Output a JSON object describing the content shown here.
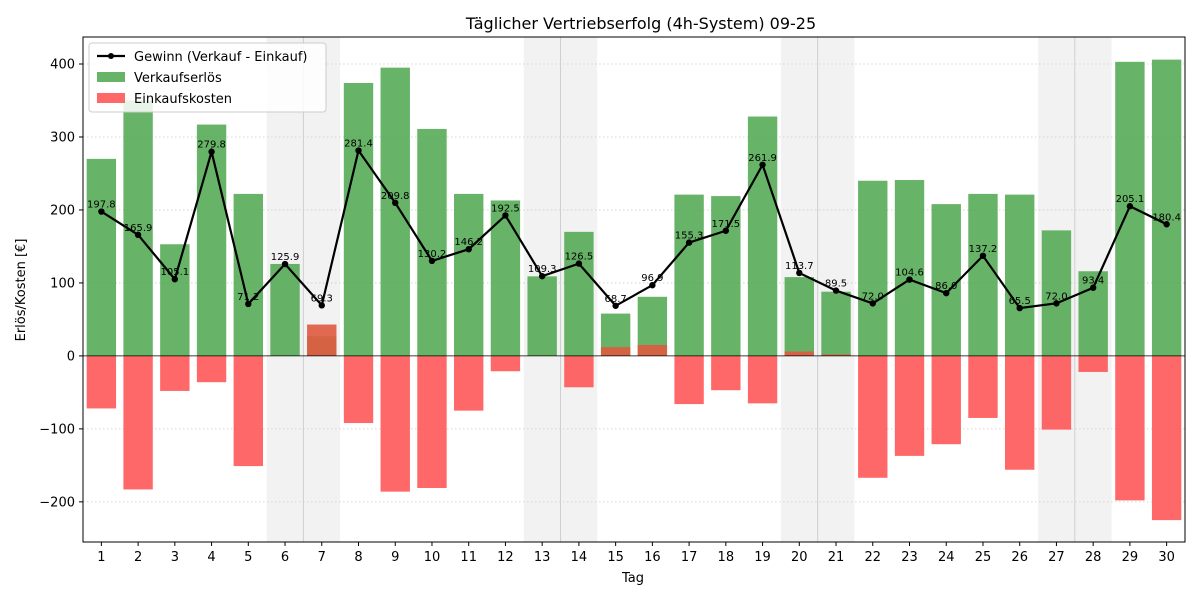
{
  "chart_data": {
    "type": "bar",
    "title": "Täglicher Vertriebserfolg (4h-System) 09-25",
    "xlabel": "Tag",
    "ylabel": "Erlös/Kosten [€]",
    "ylim": [
      -255,
      437
    ],
    "yticks": [
      -200,
      -100,
      0,
      100,
      200,
      300,
      400
    ],
    "grid": "horizontal-dotted",
    "legend_position": "top-left",
    "categories": [
      "1",
      "2",
      "3",
      "4",
      "5",
      "6",
      "7",
      "8",
      "9",
      "10",
      "11",
      "12",
      "13",
      "14",
      "15",
      "16",
      "17",
      "18",
      "19",
      "20",
      "21",
      "22",
      "23",
      "24",
      "25",
      "26",
      "27",
      "28",
      "29",
      "30"
    ],
    "weekend_days": [
      6,
      7,
      13,
      14,
      20,
      21,
      27,
      28
    ],
    "series": [
      {
        "name": "Gewinn (Verkauf - Einkauf)",
        "kind": "line",
        "color": "#000000",
        "values": [
          197.8,
          165.9,
          105.1,
          279.8,
          71.2,
          125.9,
          69.3,
          281.4,
          209.8,
          130.2,
          146.2,
          192.5,
          109.3,
          126.5,
          68.7,
          96.9,
          155.3,
          171.5,
          261.9,
          113.7,
          89.5,
          72.0,
          104.6,
          86.0,
          137.2,
          65.5,
          72.0,
          93.4,
          205.1,
          180.4
        ],
        "labels": [
          "197.8",
          "165.9",
          "105.1",
          "279.8",
          "71.2",
          "125.9",
          "69.3",
          "281.4",
          "209.8",
          "130.2",
          "146.2",
          "192.5",
          "109.3",
          "126.5",
          "68.7",
          "96.9",
          "155.3",
          "171.5",
          "261.9",
          "113.7",
          "89.5",
          "72.0",
          "104.6",
          "86.0",
          "137.2",
          "65.5",
          "72.0",
          "93.4",
          "205.1",
          "180.4"
        ]
      },
      {
        "name": "Verkaufserlös",
        "kind": "bar",
        "color": "#4ca64c",
        "values": [
          270,
          350,
          153,
          317,
          222,
          126,
          0,
          374,
          395,
          311,
          222,
          213,
          109,
          170,
          0,
          0,
          221,
          219,
          328,
          0,
          0,
          240,
          241,
          208,
          222,
          221,
          172,
          116,
          403,
          406
        ]
      },
      {
        "name": "Einkaufskosten",
        "kind": "bar",
        "color": "#ff4d4d",
        "values": [
          -72,
          -183,
          -48,
          -36,
          -151,
          0,
          0,
          -92,
          -186,
          -181,
          -75,
          -21,
          0,
          -43,
          0,
          0,
          -66,
          -47,
          -65,
          0,
          0,
          -167,
          -137,
          -121,
          -85,
          -156,
          -101,
          -22,
          -198,
          -225
        ]
      }
    ],
    "positive_cost_bars": [
      {
        "day": 7,
        "value": 43
      },
      {
        "day": 15,
        "value": 12
      },
      {
        "day": 16,
        "value": 15
      },
      {
        "day": 20,
        "value": 6
      },
      {
        "day": 21,
        "value": 2
      }
    ],
    "positive_revenue_bars": [
      {
        "day": 7,
        "value": 27
      },
      {
        "day": 15,
        "value": 58
      },
      {
        "day": 16,
        "value": 81
      },
      {
        "day": 20,
        "value": 108
      },
      {
        "day": 21,
        "value": 88
      }
    ]
  }
}
